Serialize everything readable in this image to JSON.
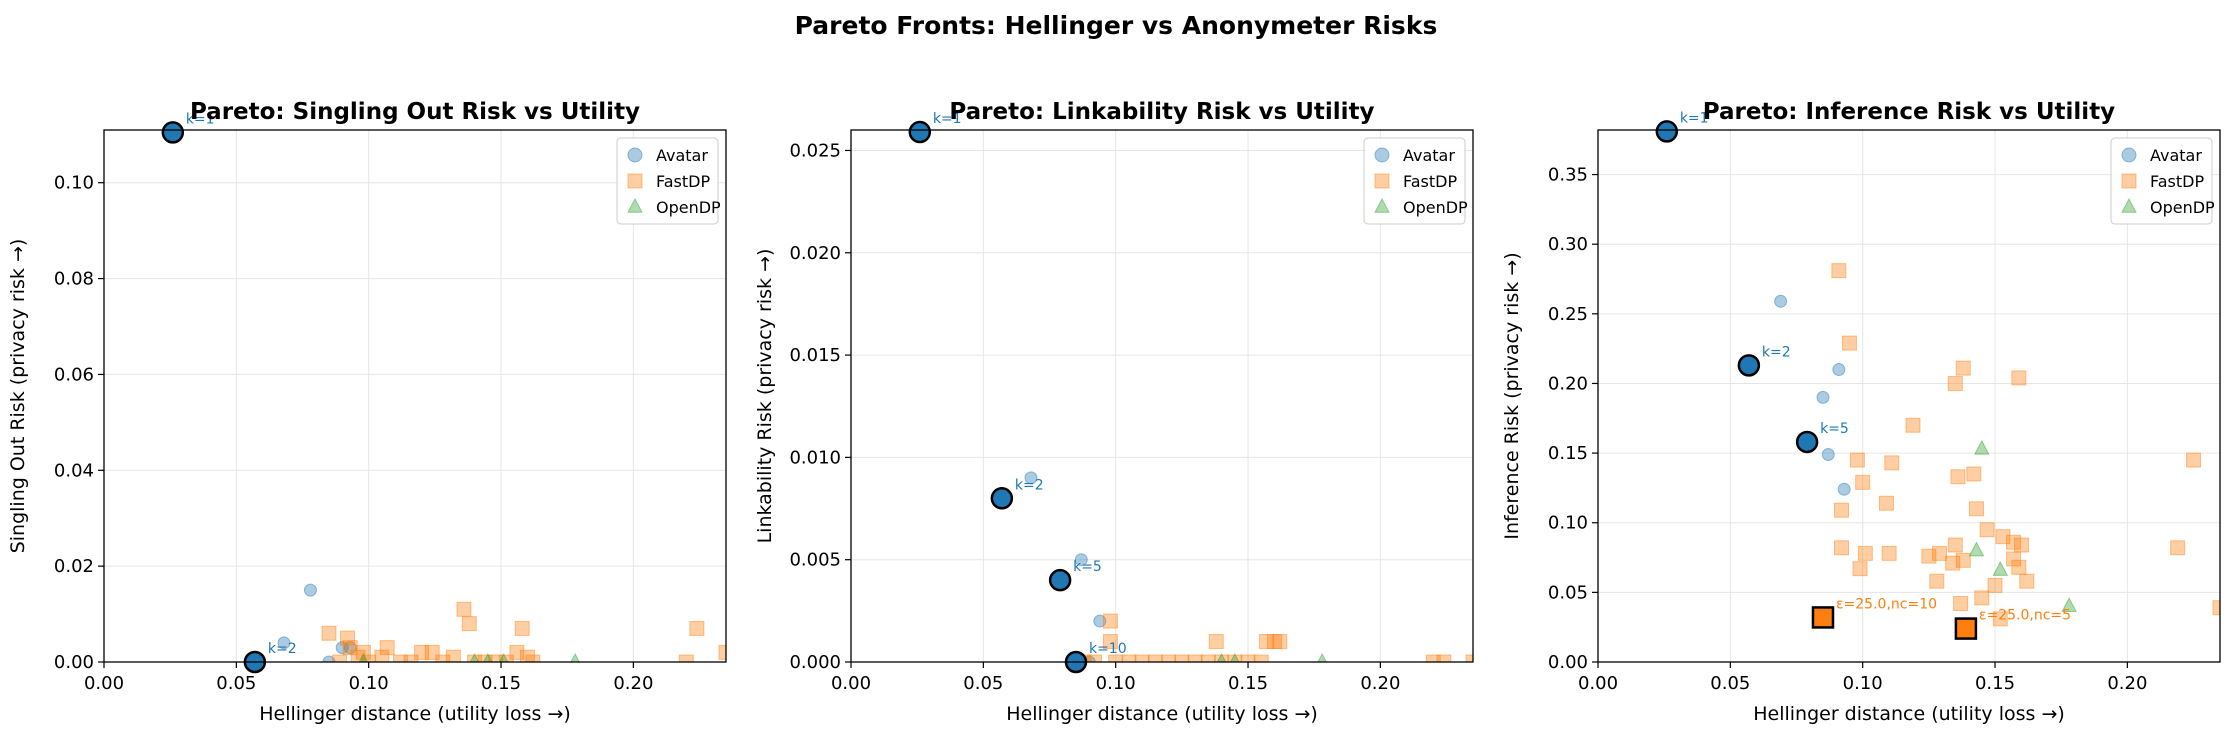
{
  "figure": {
    "title": "Pareto Fronts: Hellinger vs Anonymeter Risks"
  },
  "colors": {
    "Avatar": "#1f77b4",
    "FastDP": "#ff7f0e",
    "OpenDP": "#2ca02c"
  },
  "chart_data": [
    {
      "type": "scatter",
      "title": "Pareto: Singling Out Risk vs Utility",
      "xlabel": "Hellinger distance (utility loss →)",
      "ylabel": "Singling Out Risk (privacy risk →)",
      "xlim": [
        0,
        0.235
      ],
      "ylim": [
        0,
        0.111
      ],
      "xticks": [
        0.0,
        0.05,
        0.1,
        0.15,
        0.2
      ],
      "xtick_labels": [
        "0.00",
        "0.05",
        "0.10",
        "0.15",
        "0.20"
      ],
      "yticks": [
        0.0,
        0.02,
        0.04,
        0.06,
        0.08,
        0.1
      ],
      "ytick_labels": [
        "0.00",
        "0.02",
        "0.04",
        "0.06",
        "0.08",
        "0.10"
      ],
      "grid": true,
      "legend_position": "top-right",
      "series": [
        {
          "name": "Avatar",
          "marker": "circle",
          "x": [
            0.078,
            0.068,
            0.093,
            0.09,
            0.085
          ],
          "y": [
            0.015,
            0.004,
            0.003,
            0.003,
            0.0
          ]
        },
        {
          "name": "FastDP",
          "marker": "square",
          "x": [
            0.085,
            0.092,
            0.093,
            0.098,
            0.107,
            0.12,
            0.124,
            0.136,
            0.138,
            0.158,
            0.224,
            0.235,
            0.089,
            0.096,
            0.1,
            0.105,
            0.112,
            0.116,
            0.128,
            0.132,
            0.14,
            0.144,
            0.148,
            0.152,
            0.156,
            0.16,
            0.162,
            0.22
          ],
          "y": [
            0.006,
            0.005,
            0.003,
            0.002,
            0.003,
            0.002,
            0.002,
            0.011,
            0.008,
            0.007,
            0.007,
            0.002,
            0.0,
            0.001,
            0.0,
            0.001,
            0.0,
            0.0,
            0.0,
            0.001,
            0.0,
            0.0,
            0.0,
            0.0,
            0.002,
            0.001,
            0.0,
            0.0
          ]
        },
        {
          "name": "OpenDP",
          "marker": "triangle",
          "x": [
            0.178,
            0.14,
            0.145,
            0.151,
            0.098
          ],
          "y": [
            0.0,
            0.0,
            0.0,
            0.0,
            0.0
          ]
        }
      ],
      "pareto": [
        {
          "series": "Avatar",
          "x": 0.026,
          "y": 0.1105,
          "label": "k=1"
        },
        {
          "series": "Avatar",
          "x": 0.057,
          "y": 0.0,
          "label": "k=2"
        }
      ]
    },
    {
      "type": "scatter",
      "title": "Pareto: Linkability Risk vs Utility",
      "xlabel": "Hellinger distance (utility loss →)",
      "ylabel": "Linkability Risk (privacy risk →)",
      "xlim": [
        0,
        0.235
      ],
      "ylim": [
        0,
        0.026
      ],
      "xticks": [
        0.0,
        0.05,
        0.1,
        0.15,
        0.2
      ],
      "xtick_labels": [
        "0.00",
        "0.05",
        "0.10",
        "0.15",
        "0.20"
      ],
      "yticks": [
        0.0,
        0.005,
        0.01,
        0.015,
        0.02,
        0.025
      ],
      "ytick_labels": [
        "0.000",
        "0.005",
        "0.010",
        "0.015",
        "0.020",
        "0.025"
      ],
      "grid": true,
      "legend_position": "top-right",
      "series": [
        {
          "name": "Avatar",
          "marker": "circle",
          "x": [
            0.068,
            0.087,
            0.094,
            0.09
          ],
          "y": [
            0.009,
            0.005,
            0.002,
            0.0
          ]
        },
        {
          "name": "FastDP",
          "marker": "square",
          "x": [
            0.098,
            0.098,
            0.138,
            0.157,
            0.16,
            0.162,
            0.088,
            0.092,
            0.1,
            0.105,
            0.11,
            0.115,
            0.12,
            0.125,
            0.13,
            0.135,
            0.14,
            0.145,
            0.15,
            0.155,
            0.22,
            0.224,
            0.235
          ],
          "y": [
            0.002,
            0.001,
            0.001,
            0.001,
            0.001,
            0.001,
            0.0,
            0.0,
            0.0,
            0.0,
            0.0,
            0.0,
            0.0,
            0.0,
            0.0,
            0.0,
            0.0,
            0.0,
            0.0,
            0.0,
            0.0,
            0.0,
            0.0
          ]
        },
        {
          "name": "OpenDP",
          "marker": "triangle",
          "x": [
            0.178,
            0.14,
            0.145
          ],
          "y": [
            0.0,
            0.0,
            0.0
          ]
        }
      ],
      "pareto": [
        {
          "series": "Avatar",
          "x": 0.026,
          "y": 0.0259,
          "label": "k=1"
        },
        {
          "series": "Avatar",
          "x": 0.057,
          "y": 0.008,
          "label": "k=2"
        },
        {
          "series": "Avatar",
          "x": 0.079,
          "y": 0.004,
          "label": "k=5"
        },
        {
          "series": "Avatar",
          "x": 0.085,
          "y": 0.0,
          "label": "k=10"
        }
      ]
    },
    {
      "type": "scatter",
      "title": "Pareto: Inference Risk vs Utility",
      "xlabel": "Hellinger distance (utility loss →)",
      "ylabel": "Inference Risk (privacy risk →)",
      "xlim": [
        0,
        0.235
      ],
      "ylim": [
        0,
        0.382
      ],
      "xticks": [
        0.0,
        0.05,
        0.1,
        0.15,
        0.2
      ],
      "xtick_labels": [
        "0.00",
        "0.05",
        "0.10",
        "0.15",
        "0.20"
      ],
      "yticks": [
        0.0,
        0.05,
        0.1,
        0.15,
        0.2,
        0.25,
        0.3,
        0.35
      ],
      "ytick_labels": [
        "0.00",
        "0.05",
        "0.10",
        "0.15",
        "0.20",
        "0.25",
        "0.30",
        "0.35"
      ],
      "grid": true,
      "legend_position": "top-right",
      "series": [
        {
          "name": "Avatar",
          "marker": "circle",
          "x": [
            0.069,
            0.091,
            0.085,
            0.087,
            0.093
          ],
          "y": [
            0.259,
            0.21,
            0.19,
            0.149,
            0.124
          ]
        },
        {
          "name": "FastDP",
          "marker": "square",
          "x": [
            0.091,
            0.095,
            0.138,
            0.159,
            0.135,
            0.119,
            0.098,
            0.111,
            0.109,
            0.1,
            0.136,
            0.142,
            0.153,
            0.225,
            0.147,
            0.101,
            0.092,
            0.157,
            0.16,
            0.135,
            0.143,
            0.219,
            0.092,
            0.11,
            0.125,
            0.129,
            0.138,
            0.128,
            0.157,
            0.159,
            0.162,
            0.235,
            0.099,
            0.134,
            0.145,
            0.152,
            0.137,
            0.15
          ],
          "y": [
            0.281,
            0.229,
            0.211,
            0.204,
            0.2,
            0.17,
            0.145,
            0.143,
            0.114,
            0.129,
            0.133,
            0.135,
            0.09,
            0.145,
            0.095,
            0.078,
            0.109,
            0.086,
            0.084,
            0.084,
            0.11,
            0.082,
            0.082,
            0.078,
            0.076,
            0.078,
            0.073,
            0.058,
            0.074,
            0.068,
            0.058,
            0.039,
            0.067,
            0.071,
            0.046,
            0.031,
            0.042,
            0.055
          ]
        },
        {
          "name": "OpenDP",
          "marker": "triangle",
          "x": [
            0.145,
            0.143,
            0.152,
            0.178
          ],
          "y": [
            0.153,
            0.08,
            0.066,
            0.04
          ]
        }
      ],
      "pareto": [
        {
          "series": "Avatar",
          "x": 0.026,
          "y": 0.381,
          "label": "k=1"
        },
        {
          "series": "Avatar",
          "x": 0.057,
          "y": 0.213,
          "label": "k=2"
        },
        {
          "series": "Avatar",
          "x": 0.079,
          "y": 0.158,
          "label": "k=5"
        },
        {
          "series": "FastDP",
          "x": 0.085,
          "y": 0.032,
          "label": "ε=25.0,nc=10"
        },
        {
          "series": "FastDP",
          "x": 0.139,
          "y": 0.024,
          "label": "ε=25.0,nc=5"
        }
      ]
    }
  ]
}
